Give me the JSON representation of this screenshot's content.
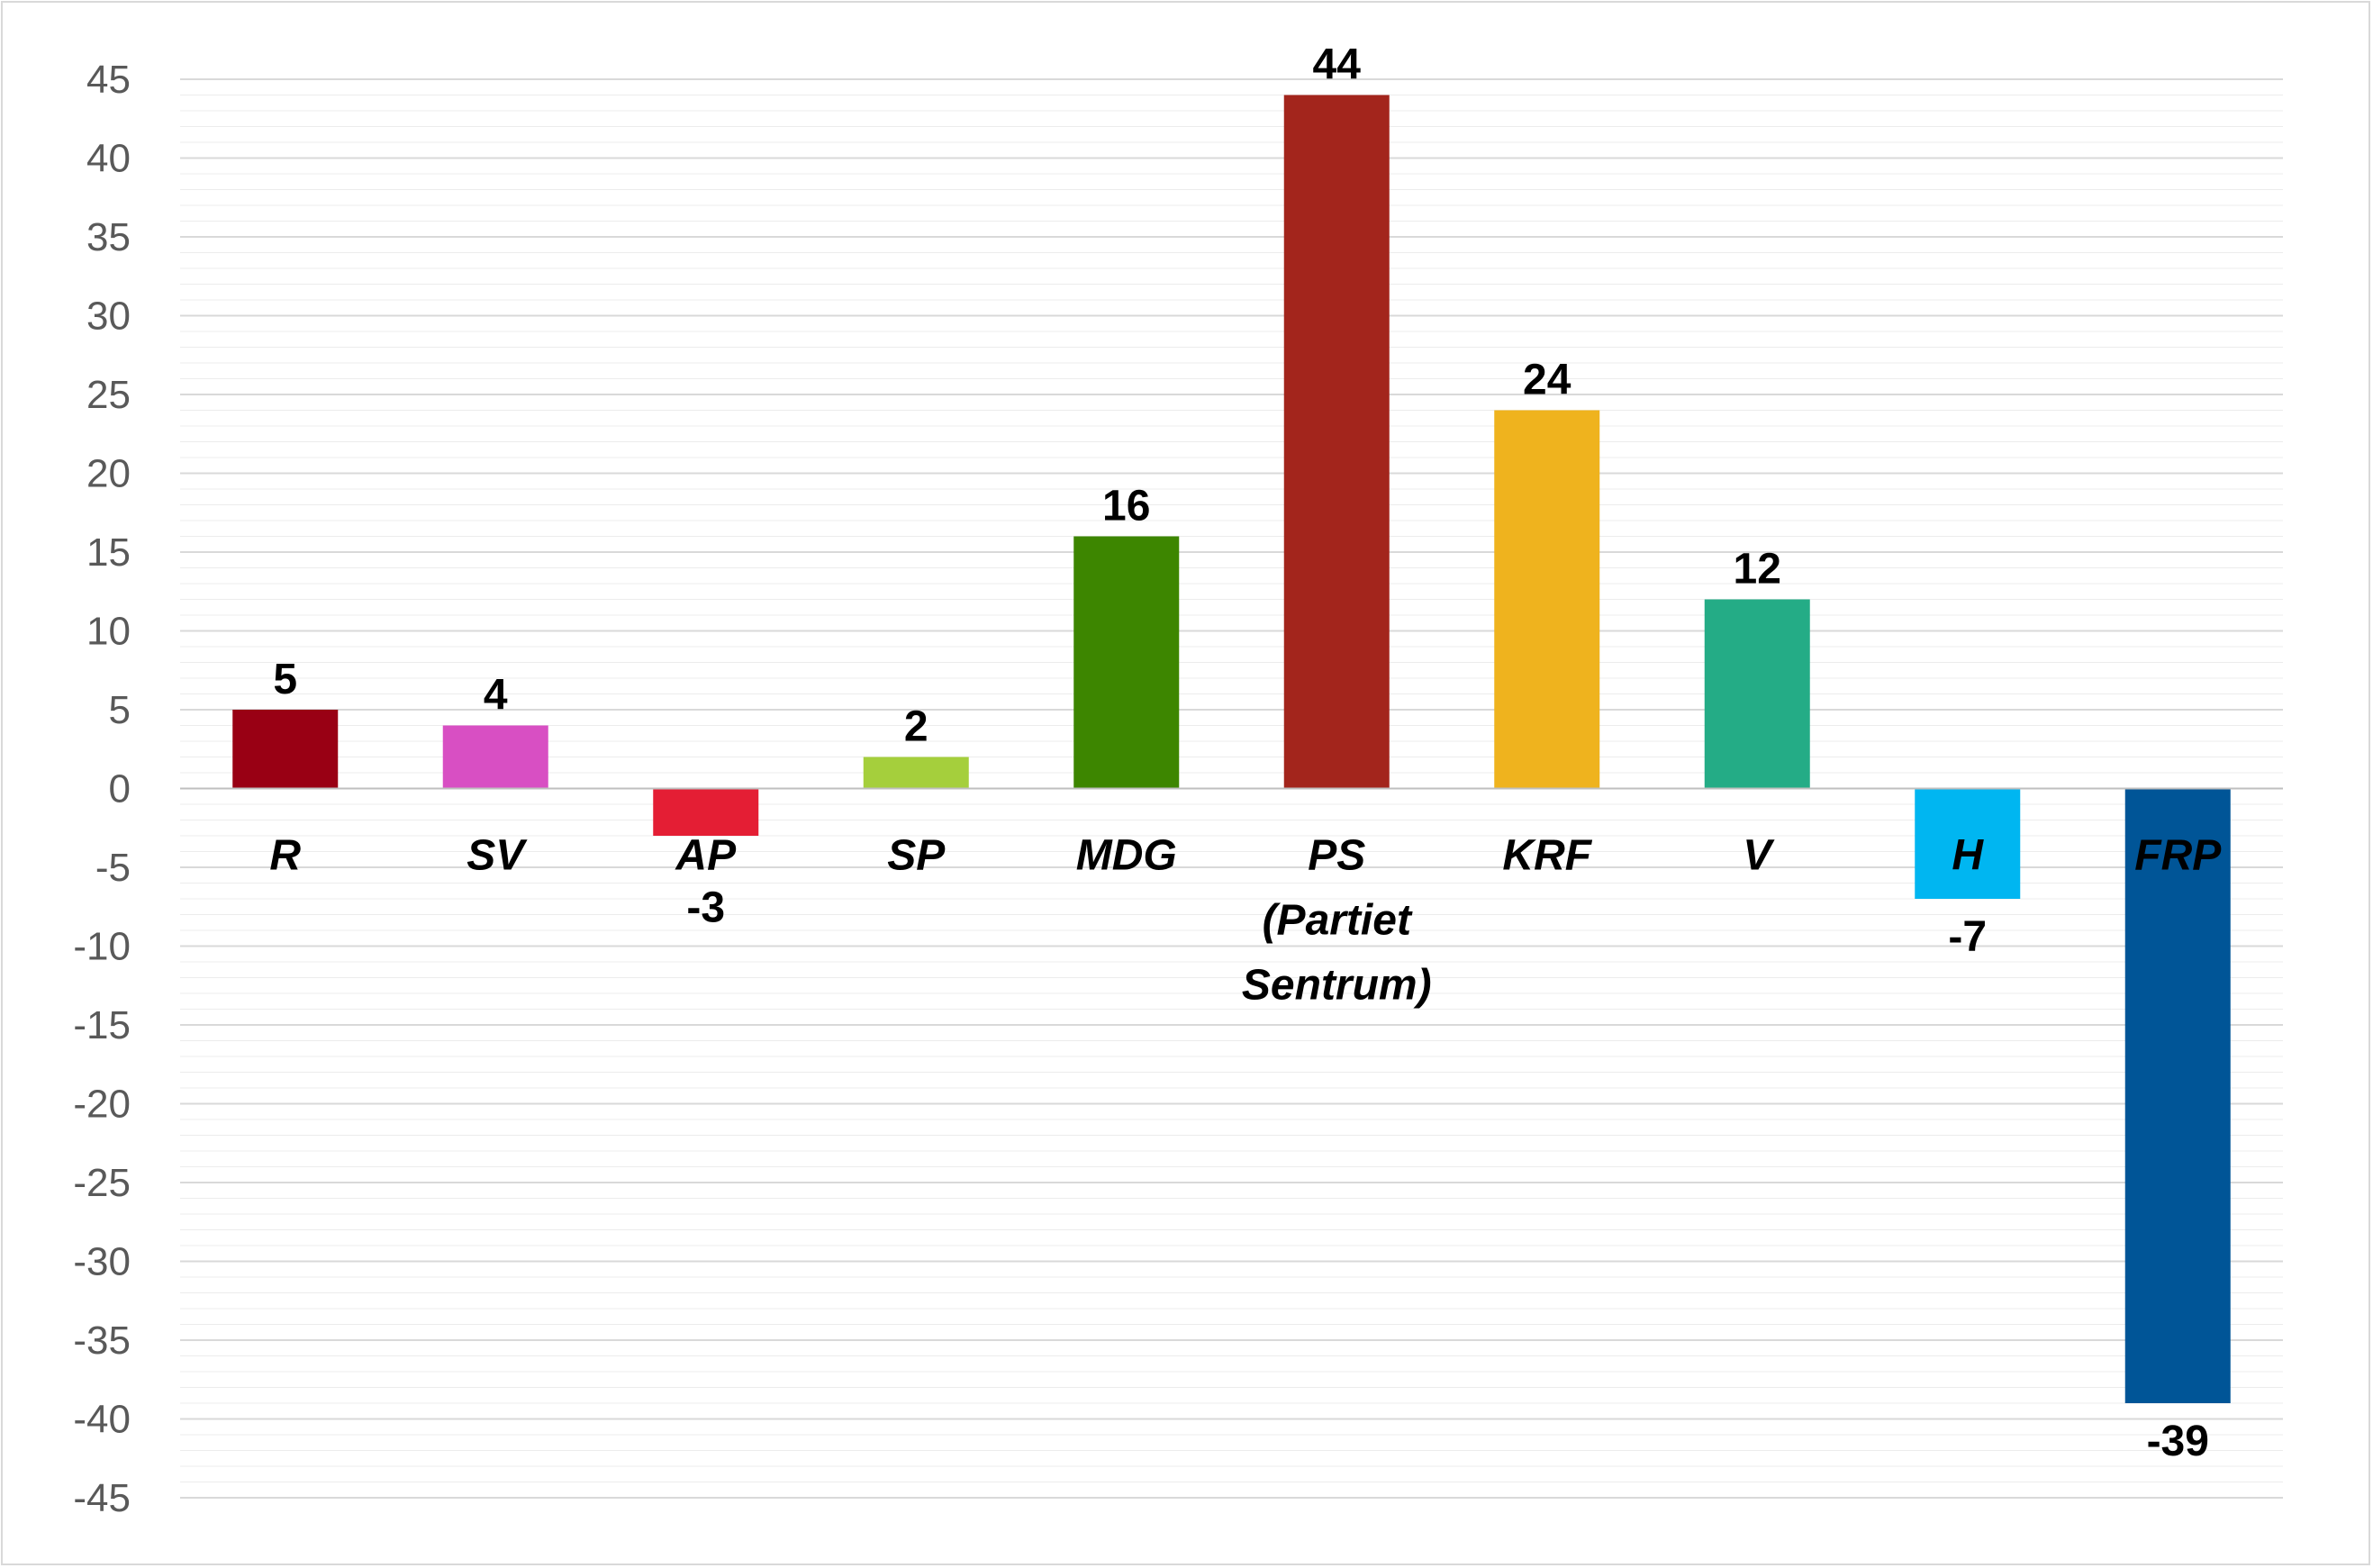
{
  "chart_data": {
    "type": "bar",
    "title": "",
    "xlabel": "",
    "ylabel": "",
    "ylim": [
      -45,
      45
    ],
    "yticks": [
      45,
      40,
      35,
      30,
      25,
      20,
      15,
      10,
      5,
      0,
      -5,
      -10,
      -15,
      -20,
      -25,
      -30,
      -35,
      -40,
      -45
    ],
    "grid": true,
    "legend": "none",
    "categories": [
      [
        "R"
      ],
      [
        "SV"
      ],
      [
        "AP"
      ],
      [
        "SP"
      ],
      [
        "MDG"
      ],
      [
        "PS",
        "(Partiet",
        "Sentrum)"
      ],
      [
        "KRF"
      ],
      [
        "V"
      ],
      [
        "H"
      ],
      [
        "FRP"
      ]
    ],
    "values": [
      5,
      4,
      -3,
      2,
      16,
      44,
      24,
      12,
      -7,
      -39
    ],
    "data_labels": [
      "5",
      "4",
      "-3",
      "2",
      "16",
      "44",
      "24",
      "12",
      "-7",
      "-39"
    ],
    "colors": [
      "#990014",
      "#d84fc3",
      "#e41e34",
      "#a5cf3c",
      "#3d8600",
      "#a3251c",
      "#efb31e",
      "#24ac86",
      "#00b6f1",
      "#005597"
    ]
  }
}
